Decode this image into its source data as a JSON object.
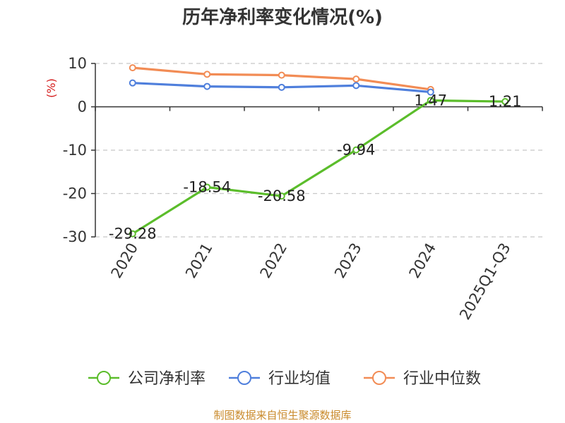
{
  "chart_data": {
    "type": "line",
    "title": "历年净利率变化情况(%)",
    "ylabel": "(%)",
    "categories": [
      "2020",
      "2021",
      "2022",
      "2023",
      "2024",
      "2025Q1-Q3"
    ],
    "ylim": [
      -30,
      10
    ],
    "yticks": [
      10,
      0,
      -10,
      -20,
      -30
    ],
    "grid": true,
    "legend_position": "bottom",
    "series": [
      {
        "name": "公司净利率",
        "color": "#5bbd2b",
        "values": [
          -29.28,
          -18.54,
          -20.58,
          -9.94,
          1.47,
          1.21
        ],
        "labels": [
          "-29.28",
          "-18.54",
          "-20.58",
          "-9.94",
          "1.47",
          "1.21"
        ]
      },
      {
        "name": "行业均值",
        "color": "#4f7fdc",
        "values": [
          5.5,
          4.7,
          4.5,
          4.9,
          3.4,
          null
        ]
      },
      {
        "name": "行业中位数",
        "color": "#f28c55",
        "values": [
          9.0,
          7.5,
          7.3,
          6.4,
          4.0,
          null
        ]
      }
    ]
  },
  "source": "制图数据来自恒生聚源数据库"
}
